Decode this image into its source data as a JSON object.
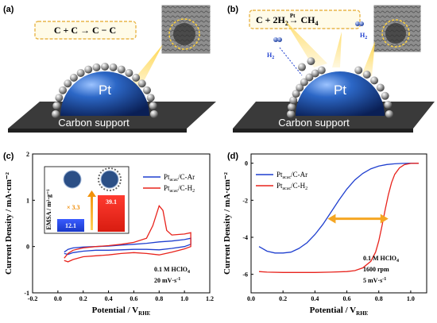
{
  "panels": {
    "a": {
      "label": "(a)",
      "equation": "C + C → C − C",
      "sphere_label": "Pt",
      "support_label": "Carbon support"
    },
    "b": {
      "label": "(b)",
      "equation_parts": [
        "C + 2H",
        "2",
        "Pt",
        "→ CH",
        "4"
      ],
      "h2_labels": [
        "H",
        "2",
        "H",
        "2"
      ],
      "sphere_label": "Pt",
      "support_label": "Carbon support"
    },
    "c": {
      "label": "(c)",
      "inset": {
        "ylabel": "EMSA / m²·g⁻¹",
        "bar_values": [
          "12.1",
          "39.1"
        ],
        "factor": "× 3.3",
        "colors": [
          "#1f3fcf",
          "#e8231c"
        ]
      },
      "note_line1": "0.1 M HClO",
      "note_line1_sub": "4",
      "note_line2": "20 mV·s",
      "note_line2_sup": "-1"
    },
    "d": {
      "label": "(d)",
      "note_line1": "0.1 M HClO",
      "note_line1_sub": "4",
      "note_line2": "1600 rpm",
      "note_line3": "5 mV·s",
      "note_line3_sup": "-1"
    }
  },
  "chart_data": [
    {
      "type": "line",
      "panel": "c",
      "xlabel": "Potential / V",
      "xlabel_sub": "RHE",
      "ylabel": "Current Density / mA·cm⁻²",
      "xlim": [
        -0.2,
        1.2
      ],
      "ylim": [
        -1.0,
        2.0
      ],
      "xticks": [
        "-0.2",
        "0.0",
        "0.2",
        "0.4",
        "0.6",
        "0.8",
        "1.0",
        "1.2"
      ],
      "yticks": [
        "-1",
        "0",
        "1",
        "2"
      ],
      "legend_position": "top-right",
      "series": [
        {
          "name": "Pt",
          "name_sub": "acac",
          "name_suffix": "/C-Ar",
          "color": "#1f3fcf",
          "x": [
            0.05,
            0.08,
            0.12,
            0.2,
            0.3,
            0.4,
            0.5,
            0.6,
            0.7,
            0.8,
            0.9,
            1.0,
            1.05,
            1.05,
            1.0,
            0.9,
            0.8,
            0.7,
            0.6,
            0.5,
            0.4,
            0.3,
            0.2,
            0.12,
            0.08,
            0.05
          ],
          "y": [
            -0.12,
            -0.06,
            -0.03,
            -0.01,
            0.0,
            0.01,
            0.03,
            0.05,
            0.07,
            0.1,
            0.12,
            0.15,
            0.18,
            0.05,
            0.0,
            -0.04,
            -0.07,
            -0.06,
            -0.06,
            -0.07,
            -0.08,
            -0.08,
            -0.1,
            -0.13,
            -0.17,
            -0.15
          ]
        },
        {
          "name": "Pt",
          "name_sub": "acac",
          "name_suffix": "/C-H",
          "name_suffix_sub": "2",
          "color": "#e8231c",
          "x": [
            0.05,
            0.08,
            0.12,
            0.2,
            0.3,
            0.4,
            0.5,
            0.6,
            0.7,
            0.75,
            0.8,
            0.83,
            0.86,
            0.9,
            1.0,
            1.05,
            1.05,
            1.0,
            0.9,
            0.8,
            0.7,
            0.6,
            0.5,
            0.4,
            0.3,
            0.2,
            0.12,
            0.08,
            0.05
          ],
          "y": [
            -0.25,
            -0.15,
            -0.08,
            -0.03,
            0.0,
            0.02,
            0.05,
            0.09,
            0.18,
            0.45,
            0.88,
            0.78,
            0.35,
            0.25,
            0.27,
            0.3,
            0.0,
            -0.05,
            -0.12,
            -0.18,
            -0.15,
            -0.13,
            -0.15,
            -0.18,
            -0.2,
            -0.22,
            -0.28,
            -0.33,
            -0.3
          ]
        }
      ]
    },
    {
      "type": "line",
      "panel": "d",
      "xlabel": "Potential / V",
      "xlabel_sub": "RHE",
      "ylabel": "Current Density / mA·cm⁻²",
      "xlim": [
        0.0,
        1.1
      ],
      "ylim": [
        -7.0,
        0.5
      ],
      "xticks": [
        "0.0",
        "0.2",
        "0.4",
        "0.6",
        "0.8",
        "1.0"
      ],
      "yticks": [
        "-6",
        "-4",
        "-2",
        "0"
      ],
      "legend_position": "top-left",
      "series": [
        {
          "name": "Pt",
          "name_sub": "acac",
          "name_suffix": "/C-Ar",
          "color": "#1f3fcf",
          "x": [
            0.05,
            0.1,
            0.15,
            0.2,
            0.25,
            0.3,
            0.35,
            0.4,
            0.45,
            0.5,
            0.55,
            0.6,
            0.65,
            0.7,
            0.75,
            0.8,
            0.85,
            0.9,
            0.95,
            1.0,
            1.05
          ],
          "y": [
            -4.5,
            -4.75,
            -4.85,
            -4.85,
            -4.8,
            -4.6,
            -4.3,
            -3.85,
            -3.3,
            -2.65,
            -2.0,
            -1.4,
            -0.9,
            -0.55,
            -0.3,
            -0.15,
            -0.07,
            -0.03,
            -0.01,
            0.0,
            0.0
          ]
        },
        {
          "name": "Pt",
          "name_sub": "acac",
          "name_suffix": "/C-H",
          "name_suffix_sub": "2",
          "color": "#e8231c",
          "x": [
            0.05,
            0.1,
            0.2,
            0.3,
            0.4,
            0.5,
            0.6,
            0.65,
            0.7,
            0.75,
            0.78,
            0.8,
            0.82,
            0.84,
            0.86,
            0.88,
            0.9,
            0.93,
            0.96,
            1.0,
            1.05
          ],
          "y": [
            -5.85,
            -5.88,
            -5.9,
            -5.9,
            -5.9,
            -5.88,
            -5.85,
            -5.8,
            -5.65,
            -5.3,
            -4.8,
            -4.2,
            -3.4,
            -2.5,
            -1.7,
            -1.05,
            -0.6,
            -0.25,
            -0.08,
            -0.01,
            0.0
          ]
        }
      ],
      "annotation": "double-headed-arrow"
    }
  ]
}
